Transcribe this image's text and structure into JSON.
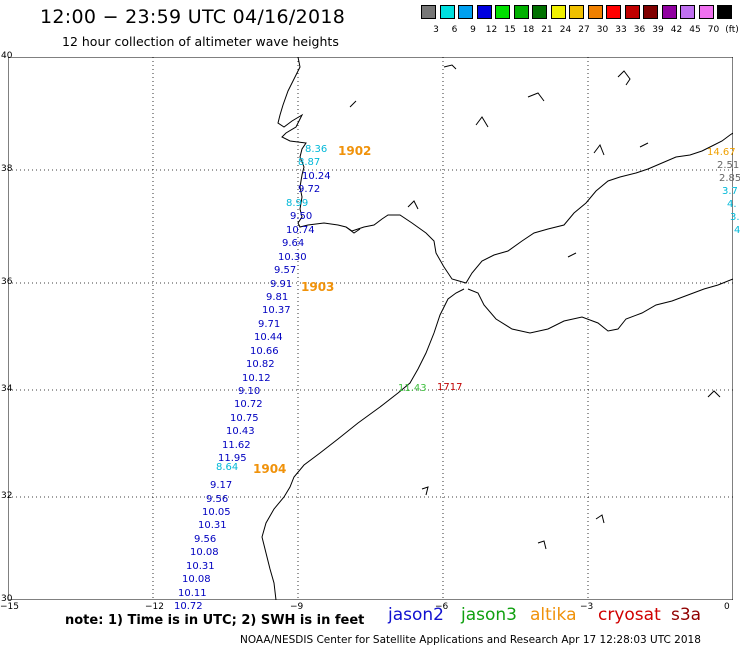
{
  "header": {
    "title": "12:00 − 23:59 UTC 04/16/2018",
    "subtitle": "12 hour collection of altimeter wave heights"
  },
  "scale": {
    "labels": [
      "3",
      "6",
      "9",
      "12",
      "15",
      "18",
      "21",
      "24",
      "27",
      "30",
      "33",
      "36",
      "39",
      "42",
      "45",
      "70",
      "(ft)"
    ],
    "colors": [
      "#777777",
      "#00e0e0",
      "#00a0f0",
      "#0000e0",
      "#00e000",
      "#00b000",
      "#007000",
      "#f0f000",
      "#f0c000",
      "#f08000",
      "#ff0000",
      "#c00000",
      "#800000",
      "#9000a0",
      "#c070f0",
      "#f070f0",
      "#000000"
    ]
  },
  "axes": {
    "lat": [
      "40",
      "38",
      "36",
      "34",
      "32",
      "30"
    ],
    "lon": [
      "−15",
      "−12",
      "−9",
      "−6",
      "−3",
      "0"
    ]
  },
  "tracks": {
    "jason2_west": {
      "color": "#0000c0",
      "values": [
        "10.24",
        "9.72",
        "9.50",
        "10.74",
        "9.64",
        "10.30",
        "9.57",
        "9.91",
        "9.81",
        "10.37",
        "9.71",
        "10.44",
        "10.66",
        "10.82",
        "10.12",
        "9.10",
        "10.72",
        "10.75",
        "10.43",
        "11.62",
        "11.95",
        "9.17",
        "9.56",
        "10.05",
        "10.31",
        "9.56",
        "10.08",
        "10.31",
        "10.08",
        "10.11",
        "10.72"
      ]
    },
    "cyan_values": [
      "8.36",
      "8.87",
      "8.99",
      "8.64"
    ],
    "east_partial": [
      "14.67",
      "2.51",
      "2.85",
      "3.7",
      "4.",
      "3.",
      "4"
    ],
    "green_value": "11.43",
    "red_value": "1717",
    "times": [
      "1902",
      "1903",
      "1904"
    ]
  },
  "note": "note: 1) Time is in UTC; 2) SWH is in feet",
  "satellites": [
    {
      "name": "jason2",
      "color": "#1010d0"
    },
    {
      "name": "jason3",
      "color": "#10a010"
    },
    {
      "name": "altika",
      "color": "#f0920a"
    },
    {
      "name": "cryosat",
      "color": "#d00000"
    },
    {
      "name": "s3a",
      "color": "#900000"
    }
  ],
  "footer": "NOAA/NESDIS Center for Satellite Applications and Research    Apr 17 12:28:03 UTC 2018"
}
